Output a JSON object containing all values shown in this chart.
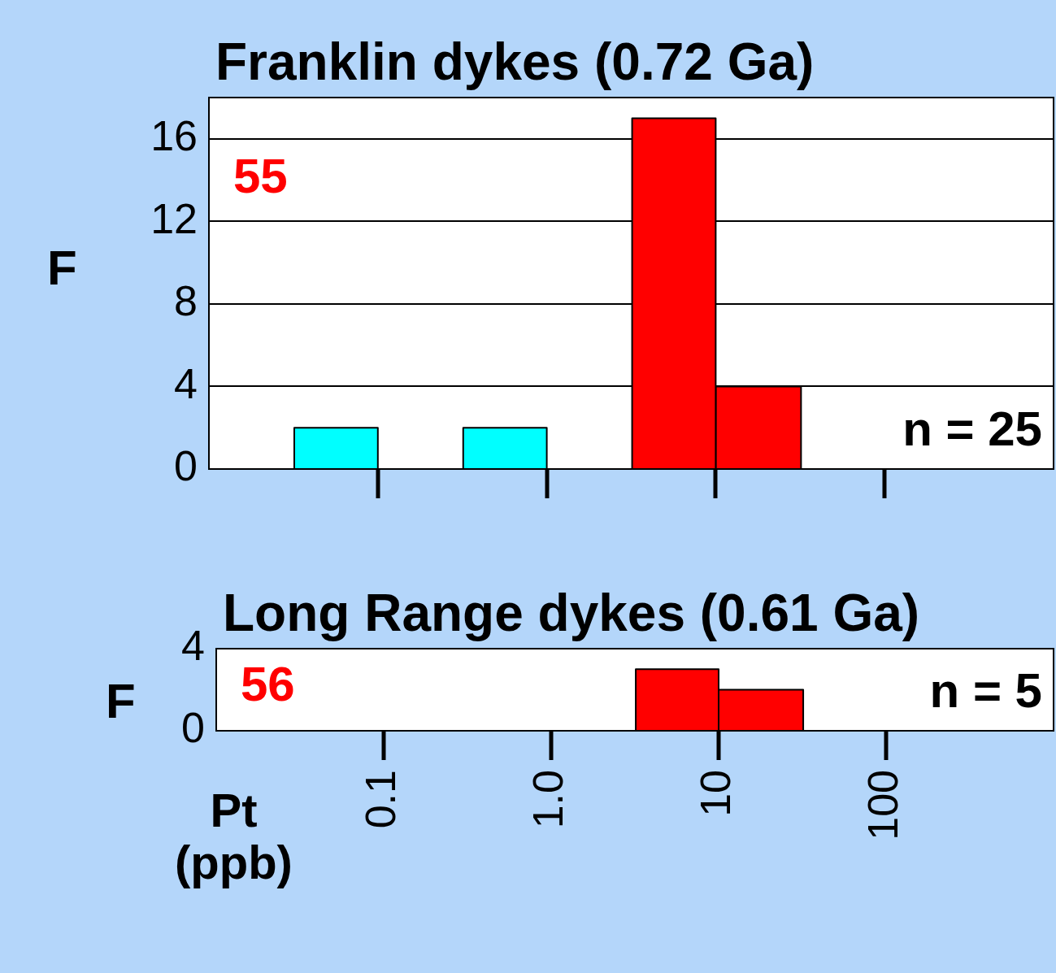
{
  "chart_data": [
    {
      "type": "histogram",
      "title": "Franklin dykes (0.72 Ga)",
      "ylabel": "F",
      "bins": [
        0.032,
        0.1,
        0.32,
        1,
        3.2,
        10,
        32
      ],
      "values": [
        2,
        0,
        2,
        0,
        17,
        4
      ],
      "colors": [
        "#00ffff",
        "#00ffff",
        "#00ffff",
        "#ff0000",
        "#ff0000",
        "#ff0000"
      ],
      "log": "x",
      "xlim": [
        0.01,
        1000
      ],
      "xticks": [
        0.1,
        1,
        10,
        100
      ],
      "ylim": [
        0,
        18
      ],
      "yticks": [
        0,
        4,
        8,
        12,
        16
      ],
      "grid": "y",
      "tick_labels": "y",
      "annotations": [
        "55",
        "n = 25"
      ]
    },
    {
      "type": "histogram",
      "title": "Long Range dykes (0.61 Ga)",
      "ylabel": "F",
      "xlabel": "Pt\n(ppb)",
      "bins": [
        3.2,
        10,
        32
      ],
      "values": [
        3,
        2
      ],
      "colors": [
        "#ff0000",
        "#ff0000"
      ],
      "log": "x",
      "xlim": [
        0.01,
        1000
      ],
      "xticks": [
        0.1,
        {
          "value": 1,
          "label": "1.0"
        },
        10,
        100
      ],
      "ylim": [
        0,
        4
      ],
      "yticks": [
        0,
        4
      ],
      "grid": false,
      "annotations": [
        "56",
        "n = 5"
      ]
    }
  ]
}
